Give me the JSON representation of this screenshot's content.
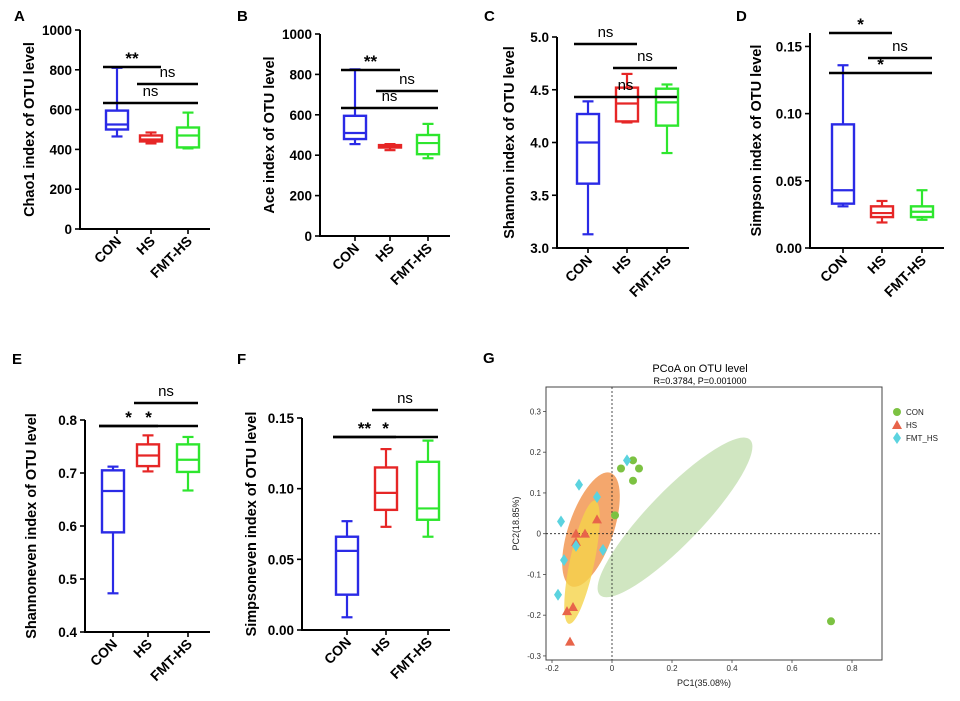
{
  "colors": {
    "CON": "#2a2ae6",
    "HS": "#e62626",
    "FMT-HS": "#2ee62e",
    "axis": "#000000",
    "pcoa_con": "#7cc242",
    "pcoa_hs": "#e8644a",
    "pcoa_fmt": "#5bd3df",
    "ell_con": "#a9d18e",
    "ell_hs": "#f08a3c",
    "ell_fmt": "#f5d34a"
  },
  "chart_data": [
    {
      "id": "A",
      "type": "box",
      "panel_letter": "A",
      "ylabel": "Chao1 index of OTU level",
      "categories": [
        "CON",
        "HS",
        "FMT-HS"
      ],
      "ylim": [
        0,
        1000
      ],
      "yticks": [
        0,
        200,
        400,
        600,
        800,
        1000
      ],
      "tick_labels": [
        "0",
        "200",
        "400",
        "600",
        "800",
        "1000"
      ],
      "boxes": [
        {
          "min": 465,
          "q1": 500,
          "median": 525,
          "q3": 595,
          "max": 810
        },
        {
          "min": 430,
          "q1": 440,
          "median": 450,
          "q3": 470,
          "max": 485
        },
        {
          "min": 405,
          "q1": 410,
          "median": 470,
          "q3": 510,
          "max": 585
        }
      ],
      "sig": [
        {
          "from": 0,
          "to": 1,
          "label": "**",
          "level": 1
        },
        {
          "from": 1,
          "to": 2,
          "label": "ns",
          "level": 1
        },
        {
          "from": 0,
          "to": 2,
          "label": "ns",
          "level": 2
        }
      ]
    },
    {
      "id": "B",
      "type": "box",
      "panel_letter": "B",
      "ylabel": "Ace index of OTU level",
      "categories": [
        "CON",
        "HS",
        "FMT-HS"
      ],
      "ylim": [
        0,
        1000
      ],
      "yticks": [
        0,
        200,
        400,
        600,
        800,
        1000
      ],
      "tick_labels": [
        "0",
        "200",
        "400",
        "600",
        "800",
        "1000"
      ],
      "boxes": [
        {
          "min": 455,
          "q1": 480,
          "median": 510,
          "q3": 595,
          "max": 825
        },
        {
          "min": 425,
          "q1": 438,
          "median": 445,
          "q3": 450,
          "max": 455
        },
        {
          "min": 385,
          "q1": 405,
          "median": 460,
          "q3": 500,
          "max": 555
        }
      ],
      "sig": [
        {
          "from": 0,
          "to": 1,
          "label": "**",
          "level": 1
        },
        {
          "from": 1,
          "to": 2,
          "label": "ns",
          "level": 1
        },
        {
          "from": 0,
          "to": 2,
          "label": "ns",
          "level": 2
        }
      ]
    },
    {
      "id": "C",
      "type": "box",
      "panel_letter": "C",
      "ylabel": "Shannon index of OTU level",
      "categories": [
        "CON",
        "HS",
        "FMT-HS"
      ],
      "ylim": [
        3.0,
        5.0
      ],
      "yticks": [
        3.0,
        3.5,
        4.0,
        4.5,
        5.0
      ],
      "tick_labels": [
        "3.0",
        "3.5",
        "4.0",
        "4.5",
        "5.0"
      ],
      "boxes": [
        {
          "min": 3.13,
          "q1": 3.61,
          "median": 4.0,
          "q3": 4.27,
          "max": 4.39
        },
        {
          "min": 4.19,
          "q1": 4.2,
          "median": 4.37,
          "q3": 4.52,
          "max": 4.65
        },
        {
          "min": 3.9,
          "q1": 4.16,
          "median": 4.38,
          "q3": 4.51,
          "max": 4.55
        }
      ],
      "sig": [
        {
          "from": 0,
          "to": 1,
          "label": "ns",
          "level": 1
        },
        {
          "from": 1,
          "to": 2,
          "label": "ns",
          "level": 1
        },
        {
          "from": 0,
          "to": 2,
          "label": "ns",
          "level": 2
        }
      ]
    },
    {
      "id": "D",
      "type": "box",
      "panel_letter": "D",
      "ylabel": "Simpson index of OTU level",
      "categories": [
        "CON",
        "HS",
        "FMT-HS"
      ],
      "ylim": [
        0.0,
        0.16
      ],
      "yticks": [
        0.0,
        0.05,
        0.1,
        0.15
      ],
      "tick_labels": [
        "0.00",
        "0.05",
        "0.10",
        "0.15"
      ],
      "boxes": [
        {
          "min": 0.031,
          "q1": 0.033,
          "median": 0.043,
          "q3": 0.092,
          "max": 0.136
        },
        {
          "min": 0.019,
          "q1": 0.023,
          "median": 0.026,
          "q3": 0.031,
          "max": 0.035
        },
        {
          "min": 0.021,
          "q1": 0.023,
          "median": 0.027,
          "q3": 0.031,
          "max": 0.043
        }
      ],
      "sig": [
        {
          "from": 0,
          "to": 1,
          "label": "*",
          "level": 1
        },
        {
          "from": 1,
          "to": 2,
          "label": "ns",
          "level": 0
        },
        {
          "from": 0,
          "to": 2,
          "label": "*",
          "level": 2
        }
      ]
    },
    {
      "id": "E",
      "type": "box",
      "panel_letter": "E",
      "ylabel": "Shannoneven index of OTU level",
      "categories": [
        "CON",
        "HS",
        "FMT-HS"
      ],
      "ylim": [
        0.4,
        0.8
      ],
      "yticks": [
        0.4,
        0.5,
        0.6,
        0.7,
        0.8
      ],
      "tick_labels": [
        "0.4",
        "0.5",
        "0.6",
        "0.7",
        "0.8"
      ],
      "boxes": [
        {
          "min": 0.473,
          "q1": 0.588,
          "median": 0.666,
          "q3": 0.705,
          "max": 0.712
        },
        {
          "min": 0.703,
          "q1": 0.713,
          "median": 0.733,
          "q3": 0.754,
          "max": 0.771
        },
        {
          "min": 0.667,
          "q1": 0.702,
          "median": 0.725,
          "q3": 0.754,
          "max": 0.768
        }
      ],
      "sig": [
        {
          "from": 0,
          "to": 1,
          "label": "*",
          "level": 1
        },
        {
          "from": 1,
          "to": 2,
          "label": "ns",
          "level": 1
        },
        {
          "from": 0,
          "to": 2,
          "label": "*",
          "level": 2
        }
      ]
    },
    {
      "id": "F",
      "type": "box",
      "panel_letter": "F",
      "ylabel": "Simpsoneven index of OTU level",
      "categories": [
        "CON",
        "HS",
        "FMT-HS"
      ],
      "ylim": [
        0.0,
        0.15
      ],
      "yticks": [
        0.0,
        0.05,
        0.1,
        0.15
      ],
      "tick_labels": [
        "0.00",
        "0.05",
        "0.10",
        "0.15"
      ],
      "boxes": [
        {
          "min": 0.009,
          "q1": 0.025,
          "median": 0.056,
          "q3": 0.066,
          "max": 0.077
        },
        {
          "min": 0.073,
          "q1": 0.085,
          "median": 0.097,
          "q3": 0.115,
          "max": 0.128
        },
        {
          "min": 0.066,
          "q1": 0.078,
          "median": 0.086,
          "q3": 0.119,
          "max": 0.134
        }
      ],
      "sig": [
        {
          "from": 0,
          "to": 1,
          "label": "**",
          "level": 1
        },
        {
          "from": 1,
          "to": 2,
          "label": "ns",
          "level": 1
        },
        {
          "from": 0,
          "to": 2,
          "label": "*",
          "level": 2
        }
      ]
    },
    {
      "id": "G",
      "type": "scatter",
      "panel_letter": "G",
      "title": "PCoA on OTU level",
      "subtitle": "R=0.3784, P=0.001000",
      "xlabel": "PC1(35.08%)",
      "ylabel": "PC2(18.85%)",
      "xlim": [
        -0.22,
        0.9
      ],
      "ylim": [
        -0.31,
        0.36
      ],
      "xticks": [
        -0.2,
        0,
        0.2,
        0.4,
        0.6,
        0.8
      ],
      "xtick_labels": [
        "-0.2",
        "0",
        "0.2",
        "0.4",
        "0.6",
        "0.8"
      ],
      "yticks": [
        -0.3,
        -0.2,
        -0.1,
        0,
        0.1,
        0.2,
        0.3
      ],
      "ytick_labels": [
        "-0.3",
        "-0.2",
        "-0.1",
        "0",
        "0.1",
        "0.2",
        "0.3"
      ],
      "legend": [
        "CON",
        "HS",
        "FMT_HS"
      ],
      "legend_position": "top-right",
      "series": [
        {
          "name": "CON",
          "marker": "circle",
          "points": [
            [
              0.03,
              0.16
            ],
            [
              0.07,
              0.18
            ],
            [
              0.09,
              0.16
            ],
            [
              0.07,
              0.13
            ],
            [
              0.01,
              0.045
            ],
            [
              0.73,
              -0.215
            ]
          ]
        },
        {
          "name": "HS",
          "marker": "triangle",
          "points": [
            [
              -0.12,
              0.0
            ],
            [
              -0.09,
              0.0
            ],
            [
              -0.05,
              0.035
            ],
            [
              -0.12,
              -0.02
            ],
            [
              -0.13,
              -0.18
            ],
            [
              -0.15,
              -0.19
            ],
            [
              -0.14,
              -0.265
            ]
          ]
        },
        {
          "name": "FMT_HS",
          "marker": "diamond",
          "points": [
            [
              -0.11,
              0.12
            ],
            [
              -0.05,
              0.09
            ],
            [
              0.05,
              0.18
            ],
            [
              -0.17,
              0.03
            ],
            [
              -0.12,
              -0.03
            ],
            [
              -0.03,
              -0.04
            ],
            [
              -0.16,
              -0.065
            ],
            [
              -0.18,
              -0.15
            ]
          ]
        }
      ],
      "ellipses": [
        {
          "name": "CON",
          "cx": 0.21,
          "cy": 0.04,
          "rx": 0.36,
          "ry": 0.065,
          "angle_deg": -46
        },
        {
          "name": "HS",
          "cx": -0.07,
          "cy": 0.01,
          "rx": 0.2,
          "ry": 0.055,
          "angle_deg": -71
        },
        {
          "name": "FMT_HS",
          "cx": -0.1,
          "cy": -0.07,
          "rx": 0.21,
          "ry": 0.03,
          "angle_deg": -78
        }
      ]
    }
  ]
}
